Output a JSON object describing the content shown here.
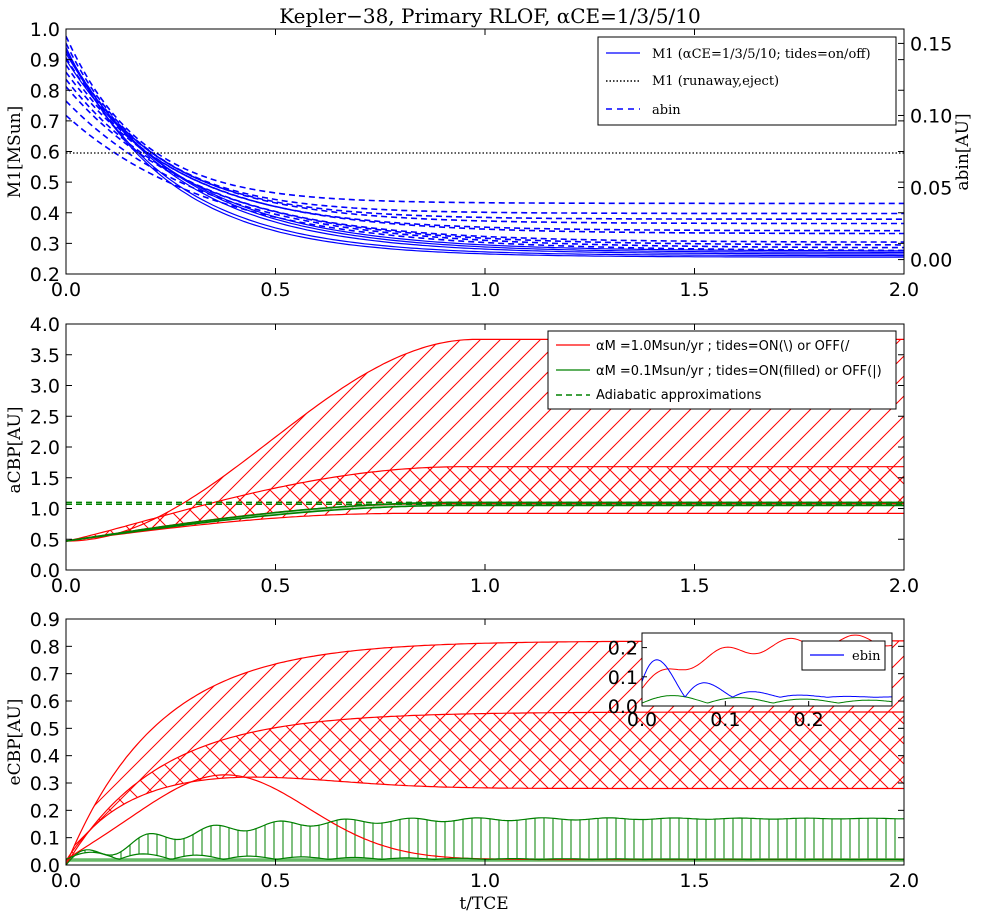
{
  "figure": {
    "title": "Kepler−38, Primary RLOF, αCE=1/3/5/10",
    "xlabel": "t/TCE"
  },
  "colors": {
    "blue": "#0000ff",
    "red": "#ff0000",
    "green": "#008000",
    "black": "#000000"
  },
  "chart_data": [
    {
      "type": "line",
      "panel": "top",
      "ylabel": "M1[MSun]",
      "y2label": "abin[AU]",
      "xlim": [
        0,
        2
      ],
      "ylim": [
        0.2,
        1.0
      ],
      "y2lim": [
        -0.01,
        0.16
      ],
      "xticks": [
        "0.0",
        "0.5",
        "1.0",
        "1.5",
        "2.0"
      ],
      "yticks": [
        "0.2",
        "0.3",
        "0.4",
        "0.5",
        "0.6",
        "0.7",
        "0.8",
        "0.9",
        "1.0"
      ],
      "y2ticks": [
        "0.00",
        "0.05",
        "0.10",
        "0.15"
      ],
      "legend": [
        {
          "label": "M1 (αCE=1/3/5/10; tides=on/off)",
          "style": "solid"
        },
        {
          "label": "M1 (runaway,eject)",
          "style": "dotted"
        },
        {
          "label": "abin",
          "style": "dashed"
        }
      ],
      "m1_solid_curves": [
        {
          "start": 0.94,
          "end": 0.255,
          "tau": 0.24
        },
        {
          "start": 0.93,
          "end": 0.26,
          "tau": 0.25
        },
        {
          "start": 0.93,
          "end": 0.265,
          "tau": 0.27
        },
        {
          "start": 0.92,
          "end": 0.27,
          "tau": 0.28
        },
        {
          "start": 0.9,
          "end": 0.275,
          "tau": 0.29
        }
      ],
      "m1_runaway_eject": 0.595,
      "abin_dashed_final": [
        0.039,
        0.032,
        0.028,
        0.025,
        0.02,
        0.018,
        0.012,
        0.01,
        0.008,
        0.006
      ],
      "abin_dashed_start": [
        0.155,
        0.15,
        0.145,
        0.14,
        0.135,
        0.13,
        0.125,
        0.12,
        0.11,
        0.1
      ]
    },
    {
      "type": "area",
      "panel": "middle",
      "ylabel": "aCBP[AU]",
      "xlim": [
        0,
        2
      ],
      "ylim": [
        0.0,
        4.0
      ],
      "xticks": [
        "0.0",
        "0.5",
        "1.0",
        "1.5",
        "2.0"
      ],
      "yticks": [
        "0.0",
        "0.5",
        "1.0",
        "1.5",
        "2.0",
        "2.5",
        "3.0",
        "3.5",
        "4.0"
      ],
      "legend": [
        {
          "label": "αM =1.0Msun/yr ; tides=ON(\\) or OFF(/",
          "color": "red",
          "style": "solid"
        },
        {
          "label": "αM =0.1Msun/yr ; tides=ON(filled) or OFF(|)",
          "color": "green",
          "style": "solid"
        },
        {
          "label": "Adiabatic approximations",
          "color": "green",
          "style": "dashed"
        }
      ],
      "series": [
        {
          "name": "red upper (1.0, OFF)",
          "start": 0.47,
          "final": 3.75,
          "band": [
            0.9,
            3.75
          ]
        },
        {
          "name": "red mid (1.0, ON)",
          "start": 0.47,
          "final": 1.68,
          "band": [
            1.08,
            1.68
          ]
        },
        {
          "name": "red low",
          "start": 0.47,
          "final": 0.9
        },
        {
          "name": "green (0.1)",
          "start": 0.47,
          "final": 1.07,
          "band": [
            1.04,
            1.1
          ]
        }
      ],
      "adiabatic_levels": [
        1.07,
        1.1
      ]
    },
    {
      "type": "area",
      "panel": "bottom",
      "ylabel": "eCBP[AU]",
      "xlim": [
        0,
        2
      ],
      "ylim": [
        0.0,
        0.9
      ],
      "xticks": [
        "0.0",
        "0.5",
        "1.0",
        "1.5",
        "2.0"
      ],
      "yticks": [
        "0.0",
        "0.1",
        "0.2",
        "0.3",
        "0.4",
        "0.5",
        "0.6",
        "0.7",
        "0.8",
        "0.9"
      ],
      "series": [
        {
          "name": "red upper",
          "final": 0.82,
          "band": [
            0.56,
            0.82
          ]
        },
        {
          "name": "red mid",
          "final": 0.56,
          "band": [
            0.28,
            0.56
          ]
        },
        {
          "name": "red low",
          "final": 0.28
        },
        {
          "name": "red bump",
          "peak": 0.33,
          "final": 0.02
        },
        {
          "name": "green",
          "band": [
            0.02,
            0.17
          ]
        }
      ]
    },
    {
      "type": "line",
      "panel": "inset",
      "xlim": [
        0,
        0.3
      ],
      "ylim": [
        0.0,
        0.25
      ],
      "xticks": [
        "0.0",
        "0.1",
        "0.2"
      ],
      "yticks": [
        "0.0",
        "0.1",
        "0.2"
      ],
      "legend": [
        {
          "label": "ebin",
          "color": "blue"
        }
      ]
    }
  ]
}
